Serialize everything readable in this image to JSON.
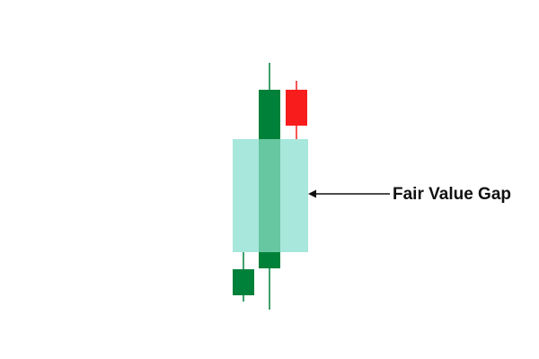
{
  "annotation": {
    "label": "Fair Value Gap"
  }
}
